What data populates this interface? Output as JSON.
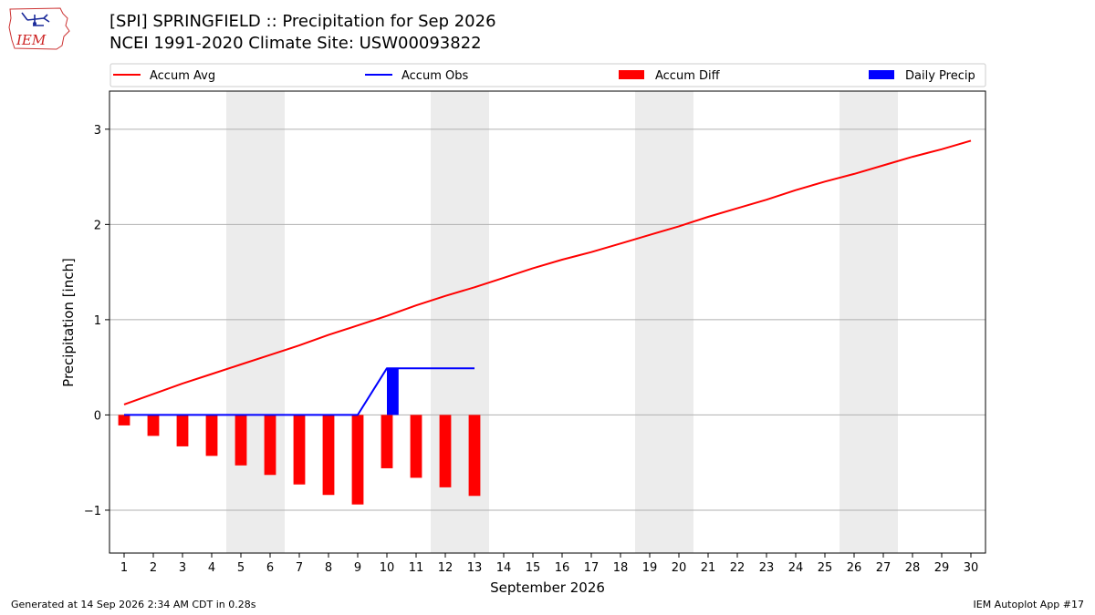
{
  "header": {
    "title_line1": "[SPI] SPRINGFIELD :: Precipitation for Sep 2026",
    "title_line2": "NCEI 1991-2020 Climate Site: USW00093822",
    "logo_text": "IEM"
  },
  "footer": {
    "generated": "Generated at 14 Sep 2026 2:34 AM CDT in 0.28s",
    "app": "IEM Autoplot App #17"
  },
  "chart_data": {
    "type": "bar",
    "xlabel": "September 2026",
    "ylabel": "Precipitation [inch]",
    "xlim": [
      0.5,
      30.5
    ],
    "ylim": [
      -1.45,
      3.4
    ],
    "yticks": [
      -1,
      0,
      1,
      2,
      3
    ],
    "ytick_labels": [
      "−1",
      "0",
      "1",
      "2",
      "3"
    ],
    "days": [
      1,
      2,
      3,
      4,
      5,
      6,
      7,
      8,
      9,
      10,
      11,
      12,
      13,
      14,
      15,
      16,
      17,
      18,
      19,
      20,
      21,
      22,
      23,
      24,
      25,
      26,
      27,
      28,
      29,
      30
    ],
    "grid": "horizontal",
    "legend_placement": "top",
    "weekend_shading": [
      [
        4.5,
        6.5
      ],
      [
        11.5,
        13.5
      ],
      [
        18.5,
        20.5
      ],
      [
        25.5,
        27.5
      ]
    ],
    "shade_color": "#ececec",
    "series": [
      {
        "name": "Accum Avg",
        "kind": "line",
        "color": "#ff0000",
        "x": [
          1,
          2,
          3,
          4,
          5,
          6,
          7,
          8,
          9,
          10,
          11,
          12,
          13,
          14,
          15,
          16,
          17,
          18,
          19,
          20,
          21,
          22,
          23,
          24,
          25,
          26,
          27,
          28,
          29,
          30
        ],
        "values": [
          0.11,
          0.22,
          0.33,
          0.43,
          0.53,
          0.63,
          0.73,
          0.84,
          0.94,
          1.04,
          1.15,
          1.25,
          1.34,
          1.44,
          1.54,
          1.63,
          1.71,
          1.8,
          1.89,
          1.98,
          2.08,
          2.17,
          2.26,
          2.36,
          2.45,
          2.53,
          2.62,
          2.71,
          2.79,
          2.88
        ]
      },
      {
        "name": "Accum Obs",
        "kind": "line",
        "color": "#0000ff",
        "x": [
          1,
          2,
          3,
          4,
          5,
          6,
          7,
          8,
          9,
          10,
          11,
          12,
          13
        ],
        "values": [
          0,
          0,
          0,
          0,
          0,
          0,
          0,
          0,
          0,
          0.49,
          0.49,
          0.49,
          0.49
        ]
      },
      {
        "name": "Accum Diff",
        "kind": "bar",
        "color": "#ff0000",
        "x": [
          1,
          2,
          3,
          4,
          5,
          6,
          7,
          8,
          9,
          10,
          11,
          12,
          13
        ],
        "values": [
          -0.11,
          -0.22,
          -0.33,
          -0.43,
          -0.53,
          -0.63,
          -0.73,
          -0.84,
          -0.94,
          -0.56,
          -0.66,
          -0.76,
          -0.85
        ]
      },
      {
        "name": "Daily Precip",
        "kind": "bar",
        "color": "#0000ff",
        "x": [
          10
        ],
        "values": [
          0.49
        ]
      }
    ]
  }
}
